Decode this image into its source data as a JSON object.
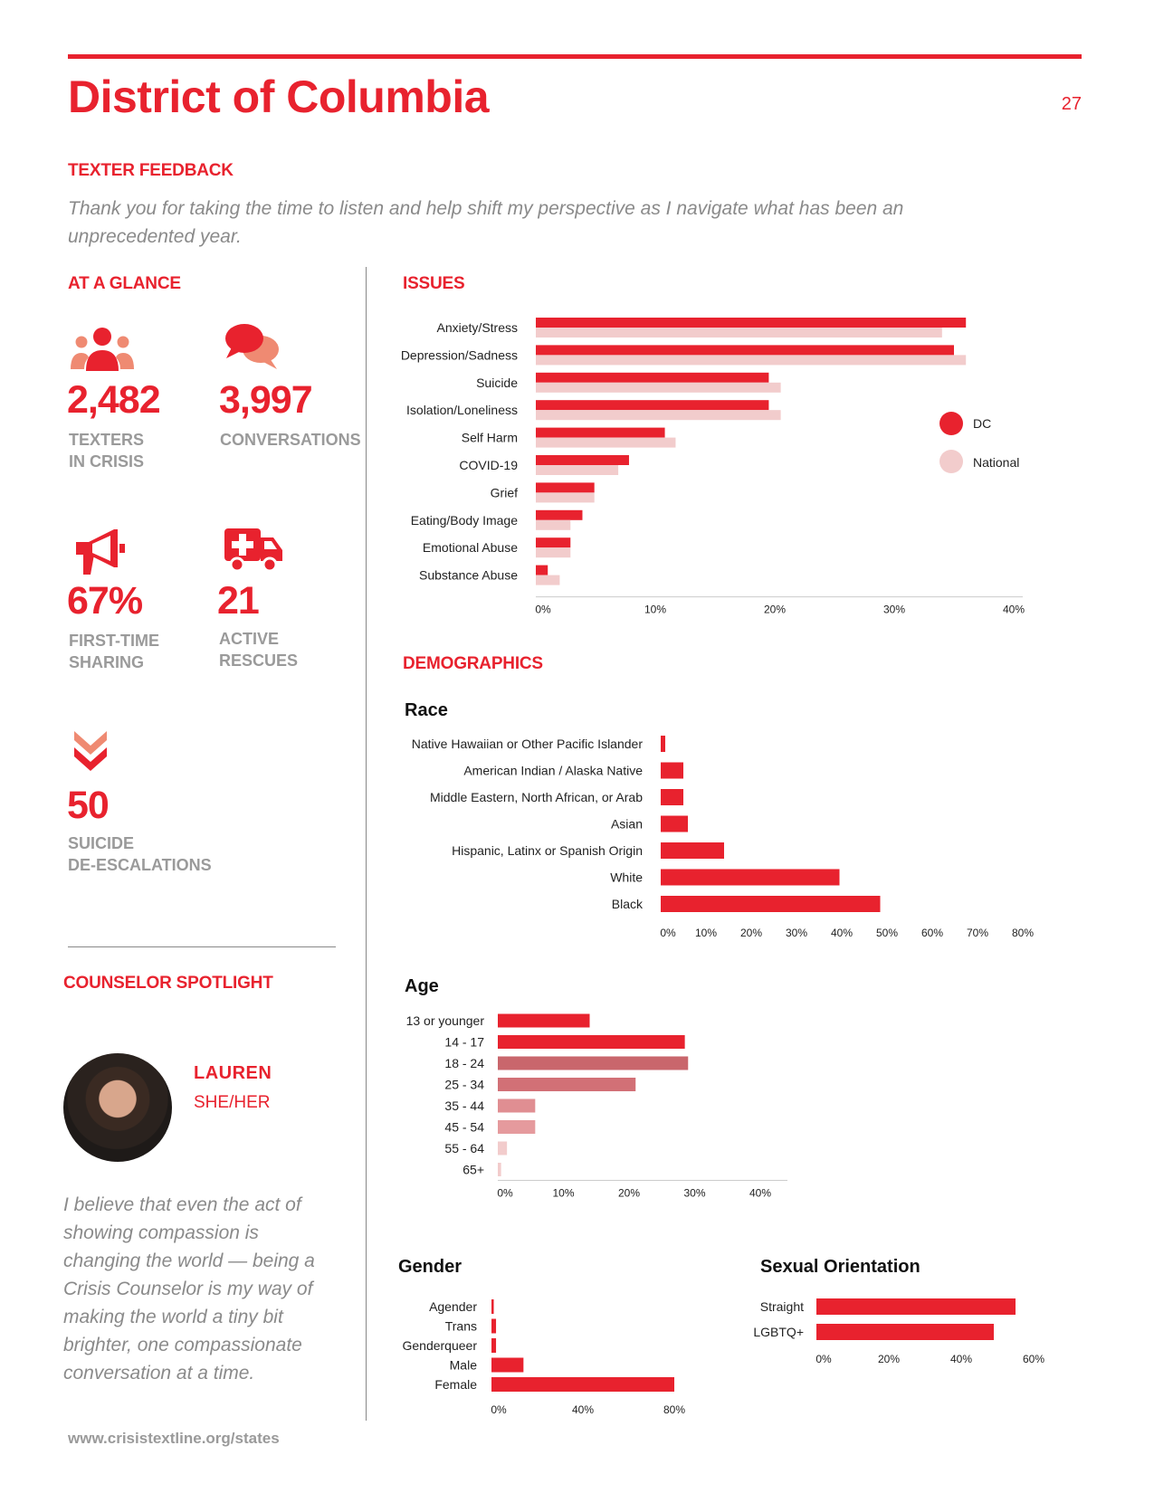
{
  "header": {
    "title": "District of Columbia",
    "page_number": "27"
  },
  "texter_feedback": {
    "heading": "TEXTER FEEDBACK",
    "quote": "Thank you for taking the time to listen and help shift my perspective as I navigate what has been an unprecedented year."
  },
  "at_a_glance": {
    "heading": "AT A GLANCE",
    "stats": [
      {
        "value": "2,482",
        "label_line1": "TEXTERS",
        "label_line2": "IN CRISIS",
        "icon": "people-icon"
      },
      {
        "value": "3,997",
        "label_line1": "CONVERSATIONS",
        "label_line2": "",
        "icon": "chat-bubbles-icon"
      },
      {
        "value": "67%",
        "label_line1": "FIRST-TIME",
        "label_line2": "SHARING",
        "icon": "megaphone-icon"
      },
      {
        "value": "21",
        "label_line1": "ACTIVE",
        "label_line2": "RESCUES",
        "icon": "ambulance-icon"
      },
      {
        "value": "50",
        "label_line1": "SUICIDE",
        "label_line2": "DE-ESCALATIONS",
        "icon": "chevron-down-double-icon"
      }
    ]
  },
  "counselor_spotlight": {
    "heading": "COUNSELOR SPOTLIGHT",
    "name": "LAUREN",
    "pronouns": "SHE/HER",
    "quote": "I believe that even the act of showing compassion is changing the world — being a Crisis Counselor is my way of making the world a tiny bit brighter, one compassionate conversation at a time."
  },
  "footer": {
    "url": "www.crisistextline.org/states"
  },
  "colors": {
    "accent": "#e8222e",
    "national": "#f2cccc",
    "gray_text": "#9a9a9a"
  },
  "sections": {
    "issues_heading": "ISSUES",
    "demographics_heading": "DEMOGRAPHICS"
  },
  "chart_data": [
    {
      "id": "issues",
      "type": "bar",
      "orientation": "horizontal",
      "categories": [
        "Anxiety/Stress",
        "Depression/Sadness",
        "Suicide",
        "Isolation/Loneliness",
        "Self Harm",
        "COVID-19",
        "Grief",
        "Eating/Body Image",
        "Emotional Abuse",
        "Substance Abuse"
      ],
      "series": [
        {
          "name": "DC",
          "values": [
            36,
            35,
            19.5,
            19.5,
            10.8,
            7.8,
            4.9,
            3.9,
            2.9,
            1
          ]
        },
        {
          "name": "National",
          "values": [
            34,
            36,
            20.5,
            20.5,
            11.7,
            6.9,
            4.9,
            2.9,
            2.9,
            2
          ]
        }
      ],
      "xlim": [
        0,
        40
      ],
      "xticks": [
        "0%",
        "10%",
        "20%",
        "30%",
        "40%"
      ],
      "legend": "right"
    },
    {
      "id": "race",
      "type": "bar",
      "orientation": "horizontal",
      "title": "Race",
      "categories": [
        "Native Hawaiian or Other Pacific Islander",
        "American Indian / Alaska Native",
        "Middle Eastern, North African, or Arab",
        "Asian",
        "Hispanic, Latinx or Spanish Origin",
        "White",
        "Black"
      ],
      "values": [
        1,
        5,
        5,
        6,
        14,
        39.5,
        48.5
      ],
      "xlim": [
        0,
        80
      ],
      "xticks": [
        "0%",
        "10%",
        "20%",
        "30%",
        "40%",
        "50%",
        "60%",
        "70%",
        "80%"
      ]
    },
    {
      "id": "age",
      "type": "bar",
      "orientation": "horizontal",
      "title": "Age",
      "categories": [
        "13 or younger",
        "14 - 17",
        "18 - 24",
        "25 - 34",
        "35 - 44",
        "45 - 54",
        "55 - 64",
        "65+"
      ],
      "values": [
        14,
        28.5,
        29,
        21,
        5.7,
        5.7,
        1.4,
        0.5
      ],
      "colors": [
        "#e8222e",
        "#e8222e",
        "#c9666c",
        "#d27076",
        "#e08e92",
        "#e59a9d",
        "#f2cccc",
        "#f2cccc"
      ],
      "xlim": [
        0,
        40
      ],
      "xticks": [
        "0%",
        "10%",
        "20%",
        "30%",
        "40%"
      ]
    },
    {
      "id": "gender",
      "type": "bar",
      "orientation": "horizontal",
      "title": "Gender",
      "categories": [
        "Agender",
        "Trans",
        "Genderqueer",
        "Male",
        "Female"
      ],
      "values": [
        1,
        2,
        2,
        14,
        80
      ],
      "xlim": [
        0,
        80
      ],
      "xticks": [
        "0%",
        "40%",
        "80%"
      ]
    },
    {
      "id": "sexual_orientation",
      "type": "bar",
      "orientation": "horizontal",
      "title": "Sexual Orientation",
      "categories": [
        "Straight",
        "LGBTQ+"
      ],
      "values": [
        55,
        49
      ],
      "xlim": [
        0,
        60
      ],
      "xticks": [
        "0%",
        "20%",
        "40%",
        "60%"
      ]
    }
  ]
}
